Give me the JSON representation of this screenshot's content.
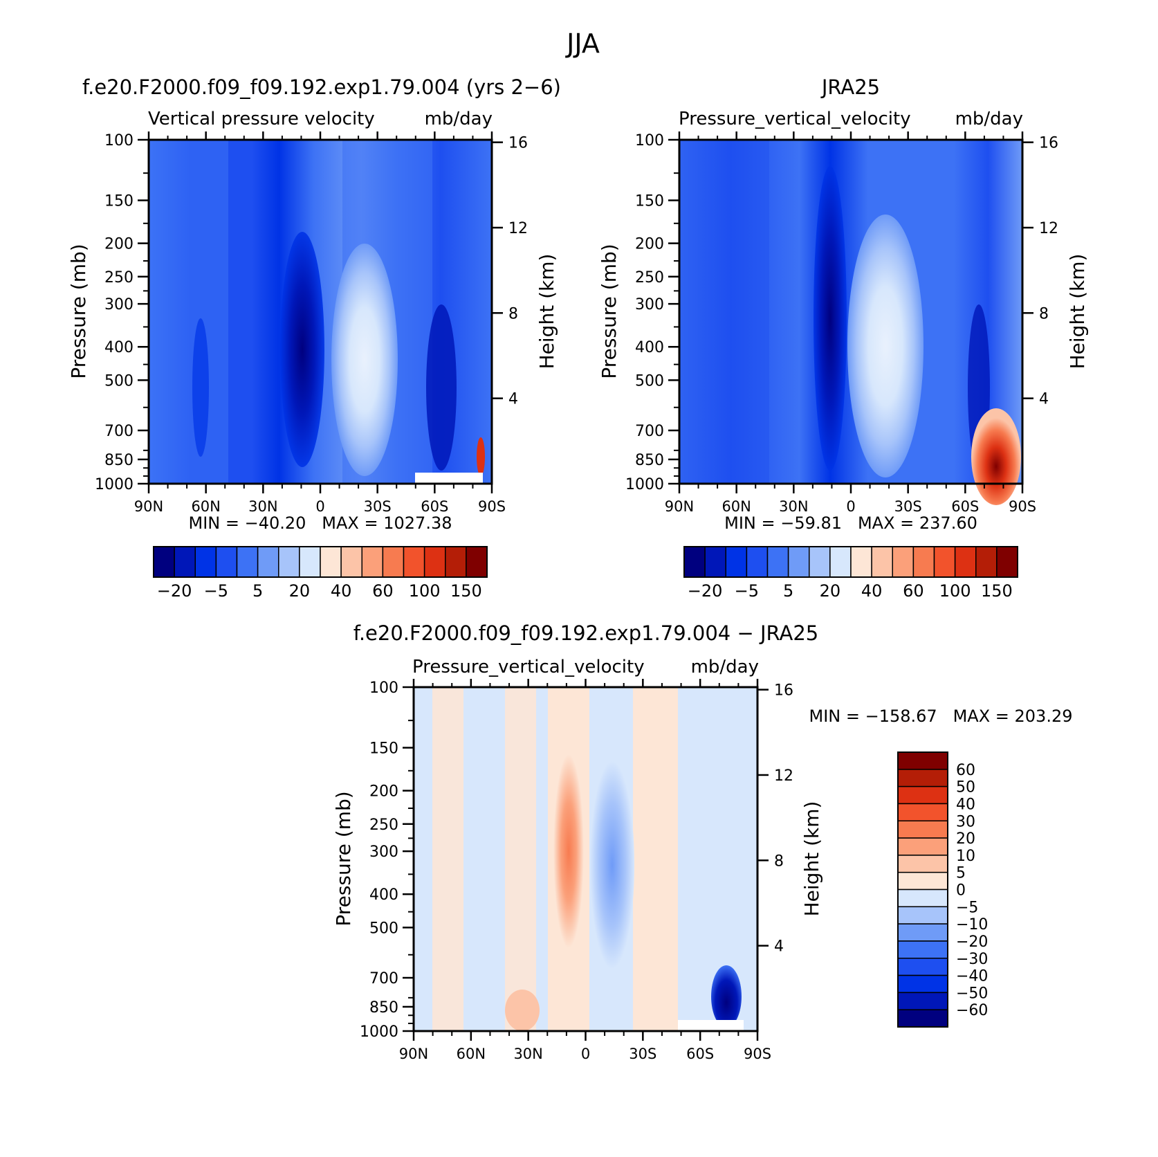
{
  "figure": {
    "title": "JJA"
  },
  "chart_data": [
    {
      "type": "heatmap",
      "title": "f.e20.F2000.f09_f09.192.exp1.79.004 (yrs 2−6)",
      "subtitle_left": "Vertical pressure velocity",
      "subtitle_right": "mb/day",
      "ylabel": "Pressure (mb)",
      "ylabel_right": "Height (km)",
      "x_ticks": [
        "90N",
        "60N",
        "30N",
        "0",
        "30S",
        "60S",
        "90S"
      ],
      "x_values": [
        90,
        60,
        30,
        0,
        -30,
        -60,
        -90
      ],
      "y_ticks": [
        100,
        150,
        200,
        250,
        300,
        400,
        500,
        700,
        850,
        1000
      ],
      "y_ticks_right": [
        16,
        12,
        8,
        4
      ],
      "yscale": "log",
      "ylim": [
        1000,
        100
      ],
      "xlim": [
        90,
        -90
      ],
      "stats": "MIN = −40.20   MAX = 1027.38",
      "colorbar": {
        "orientation": "horizontal",
        "levels_printed": [
          "−20",
          "−5",
          "5",
          "20",
          "40",
          "60",
          "100",
          "150"
        ],
        "colors": [
          "#00007f",
          "#0017b8",
          "#0033e6",
          "#1e4ff0",
          "#3d72f5",
          "#6f9bf7",
          "#a7c4fa",
          "#d7e7fc",
          "#fde6d6",
          "#fcc4a8",
          "#fba07a",
          "#f77b50",
          "#f2532c",
          "#dd3113",
          "#b41e07",
          "#7f0000"
        ]
      }
    },
    {
      "type": "heatmap",
      "title": "JRA25",
      "subtitle_left": "Pressure_vertical_velocity",
      "subtitle_right": "mb/day",
      "ylabel": "Pressure (mb)",
      "ylabel_right": "Height (km)",
      "x_ticks": [
        "90N",
        "60N",
        "30N",
        "0",
        "30S",
        "60S",
        "90S"
      ],
      "x_values": [
        90,
        60,
        30,
        0,
        -30,
        -60,
        -90
      ],
      "y_ticks": [
        100,
        150,
        200,
        250,
        300,
        400,
        500,
        700,
        850,
        1000
      ],
      "y_ticks_right": [
        16,
        12,
        8,
        4
      ],
      "yscale": "log",
      "ylim": [
        1000,
        100
      ],
      "xlim": [
        90,
        -90
      ],
      "stats": "MIN = −59.81   MAX = 237.60",
      "colorbar": {
        "orientation": "horizontal",
        "levels_printed": [
          "−20",
          "−5",
          "5",
          "20",
          "40",
          "60",
          "100",
          "150"
        ],
        "colors": [
          "#00007f",
          "#0017b8",
          "#0033e6",
          "#1e4ff0",
          "#3d72f5",
          "#6f9bf7",
          "#a7c4fa",
          "#d7e7fc",
          "#fde6d6",
          "#fcc4a8",
          "#fba07a",
          "#f77b50",
          "#f2532c",
          "#dd3113",
          "#b41e07",
          "#7f0000"
        ]
      }
    },
    {
      "type": "heatmap",
      "title": "f.e20.F2000.f09_f09.192.exp1.79.004 − JRA25",
      "subtitle_left": "Pressure_vertical_velocity",
      "subtitle_right": "mb/day",
      "ylabel": "Pressure (mb)",
      "ylabel_right": "Height (km)",
      "x_ticks": [
        "90N",
        "60N",
        "30N",
        "0",
        "30S",
        "60S",
        "90S"
      ],
      "x_values": [
        90,
        60,
        30,
        0,
        -30,
        -60,
        -90
      ],
      "y_ticks": [
        100,
        150,
        200,
        250,
        300,
        400,
        500,
        700,
        850,
        1000
      ],
      "y_ticks_right": [
        16,
        12,
        8,
        4
      ],
      "yscale": "log",
      "ylim": [
        1000,
        100
      ],
      "xlim": [
        90,
        -90
      ],
      "stats": "MIN = −158.67   MAX = 203.29",
      "colorbar": {
        "orientation": "vertical",
        "levels_printed": [
          "60",
          "50",
          "40",
          "30",
          "20",
          "10",
          "5",
          "0",
          "−5",
          "−10",
          "−20",
          "−30",
          "−40",
          "−50",
          "−60"
        ],
        "colors": [
          "#7f0000",
          "#b41e07",
          "#dd3113",
          "#f2532c",
          "#f77b50",
          "#fba07a",
          "#fcc4a8",
          "#fde6d6",
          "#d7e7fc",
          "#a7c4fa",
          "#6f9bf7",
          "#3d72f5",
          "#1e4ff0",
          "#0033e6",
          "#0017b8",
          "#00007f"
        ]
      }
    }
  ]
}
